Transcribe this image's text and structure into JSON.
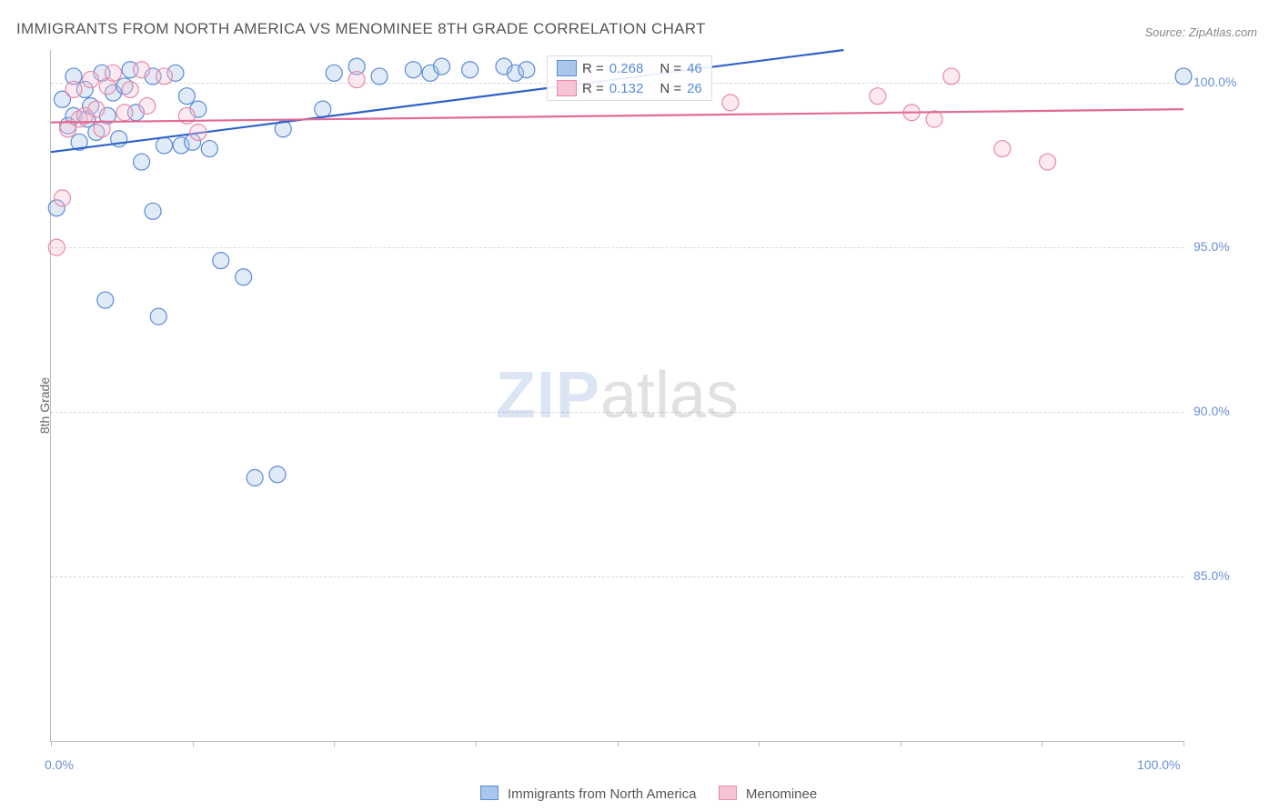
{
  "title": "IMMIGRANTS FROM NORTH AMERICA VS MENOMINEE 8TH GRADE CORRELATION CHART",
  "source": "Source: ZipAtlas.com",
  "yaxis_label": "8th Grade",
  "watermark": {
    "part1": "ZIP",
    "part2": "atlas"
  },
  "chart": {
    "type": "scatter",
    "xlim": [
      0,
      100
    ],
    "ylim": [
      80,
      101
    ],
    "background_color": "#ffffff",
    "grid_color": "#d8d8d8",
    "axis_color": "#bbbbbb",
    "tick_label_color": "#6a8fd8",
    "ytick_values": [
      85.0,
      90.0,
      95.0,
      100.0
    ],
    "ytick_labels": [
      "85.0%",
      "90.0%",
      "95.0%",
      "100.0%"
    ],
    "xtick_positions": [
      0,
      12.5,
      25,
      37.5,
      50,
      62.5,
      75,
      87.5,
      100
    ],
    "xtick_labels_shown": {
      "0": "0.0%",
      "100": "100.0%"
    },
    "point_radius": 9,
    "point_stroke_width": 1.2,
    "point_fill_opacity": 0.35,
    "trend_line_width": 2.2
  },
  "series": [
    {
      "name": "Immigrants from North America",
      "name_short": "Immigrants from North America",
      "color_fill": "#a9c6ec",
      "color_stroke": "#5a8bd6",
      "line_color": "#2f62c9",
      "R_label": "R =",
      "R": "0.268",
      "N_label": "N =",
      "N": "46",
      "trend": {
        "x1": 0,
        "y1": 97.9,
        "x2": 70,
        "y2": 101.0
      },
      "points": [
        {
          "x": 0.5,
          "y": 96.2
        },
        {
          "x": 1.0,
          "y": 99.5
        },
        {
          "x": 1.5,
          "y": 98.7
        },
        {
          "x": 2.0,
          "y": 100.2
        },
        {
          "x": 2.0,
          "y": 99.0
        },
        {
          "x": 2.5,
          "y": 98.2
        },
        {
          "x": 3.0,
          "y": 99.8
        },
        {
          "x": 3.2,
          "y": 98.9
        },
        {
          "x": 3.5,
          "y": 99.3
        },
        {
          "x": 4.0,
          "y": 98.5
        },
        {
          "x": 4.5,
          "y": 100.3
        },
        {
          "x": 4.8,
          "y": 93.4
        },
        {
          "x": 5.0,
          "y": 99.0
        },
        {
          "x": 5.5,
          "y": 99.7
        },
        {
          "x": 6.0,
          "y": 98.3
        },
        {
          "x": 6.5,
          "y": 99.9
        },
        {
          "x": 7.0,
          "y": 100.4
        },
        {
          "x": 7.5,
          "y": 99.1
        },
        {
          "x": 8.0,
          "y": 97.6
        },
        {
          "x": 9.0,
          "y": 100.2
        },
        {
          "x": 9.0,
          "y": 96.1
        },
        {
          "x": 9.5,
          "y": 92.9
        },
        {
          "x": 10.0,
          "y": 98.1
        },
        {
          "x": 11.0,
          "y": 100.3
        },
        {
          "x": 11.5,
          "y": 98.1
        },
        {
          "x": 12.0,
          "y": 99.6
        },
        {
          "x": 12.5,
          "y": 98.2
        },
        {
          "x": 13.0,
          "y": 99.2
        },
        {
          "x": 14.0,
          "y": 98.0
        },
        {
          "x": 15.0,
          "y": 94.6
        },
        {
          "x": 17.0,
          "y": 94.1
        },
        {
          "x": 18.0,
          "y": 88.0
        },
        {
          "x": 20.0,
          "y": 88.1
        },
        {
          "x": 20.5,
          "y": 98.6
        },
        {
          "x": 24.0,
          "y": 99.2
        },
        {
          "x": 25.0,
          "y": 100.3
        },
        {
          "x": 27.0,
          "y": 100.5
        },
        {
          "x": 29.0,
          "y": 100.2
        },
        {
          "x": 32.0,
          "y": 100.4
        },
        {
          "x": 33.5,
          "y": 100.3
        },
        {
          "x": 34.5,
          "y": 100.5
        },
        {
          "x": 37.0,
          "y": 100.4
        },
        {
          "x": 40.0,
          "y": 100.5
        },
        {
          "x": 41.0,
          "y": 100.3
        },
        {
          "x": 42.0,
          "y": 100.4
        },
        {
          "x": 100.0,
          "y": 100.2
        }
      ]
    },
    {
      "name": "Menominee",
      "name_short": "Menominee",
      "color_fill": "#f6c4d4",
      "color_stroke": "#e889aa",
      "line_color": "#e26a95",
      "R_label": "R =",
      "R": "0.132",
      "N_label": "N =",
      "N": "26",
      "trend": {
        "x1": 0,
        "y1": 98.8,
        "x2": 100,
        "y2": 99.2
      },
      "points": [
        {
          "x": 0.5,
          "y": 95.0
        },
        {
          "x": 1.0,
          "y": 96.5
        },
        {
          "x": 1.5,
          "y": 98.6
        },
        {
          "x": 2.0,
          "y": 99.8
        },
        {
          "x": 2.5,
          "y": 98.9
        },
        {
          "x": 3.0,
          "y": 99.0
        },
        {
          "x": 3.5,
          "y": 100.1
        },
        {
          "x": 4.0,
          "y": 99.2
        },
        {
          "x": 4.5,
          "y": 98.6
        },
        {
          "x": 5.0,
          "y": 99.9
        },
        {
          "x": 5.5,
          "y": 100.3
        },
        {
          "x": 6.5,
          "y": 99.1
        },
        {
          "x": 7.0,
          "y": 99.8
        },
        {
          "x": 8.0,
          "y": 100.4
        },
        {
          "x": 8.5,
          "y": 99.3
        },
        {
          "x": 10.0,
          "y": 100.2
        },
        {
          "x": 12.0,
          "y": 99.0
        },
        {
          "x": 13.0,
          "y": 98.5
        },
        {
          "x": 27.0,
          "y": 100.1
        },
        {
          "x": 60.0,
          "y": 99.4
        },
        {
          "x": 73.0,
          "y": 99.6
        },
        {
          "x": 76.0,
          "y": 99.1
        },
        {
          "x": 78.0,
          "y": 98.9
        },
        {
          "x": 79.5,
          "y": 100.2
        },
        {
          "x": 84.0,
          "y": 98.0
        },
        {
          "x": 88.0,
          "y": 97.6
        }
      ]
    }
  ],
  "bottom_legend": {
    "series1": "Immigrants from North America",
    "series2": "Menominee"
  }
}
